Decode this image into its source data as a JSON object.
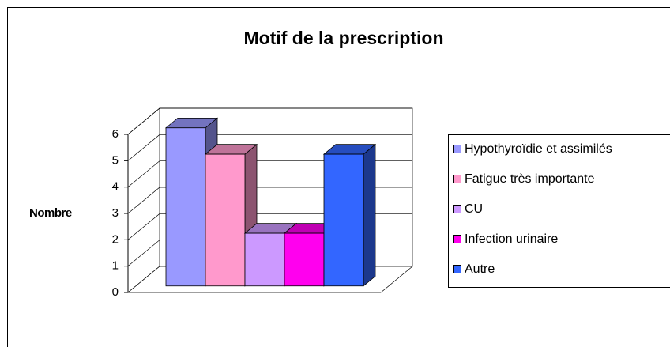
{
  "chart_data": {
    "type": "bar",
    "title": "Motif de la prescription",
    "y_label": "Nombre",
    "categories": [
      "Hypothyroïdie et assimilés",
      "Fatigue très importante",
      "CU",
      "Infection urinaire",
      "Autre"
    ],
    "values": [
      6,
      5,
      2,
      2,
      5
    ],
    "colors": [
      "#9999ff",
      "#ff99cc",
      "#cc99ff",
      "#ff00ee",
      "#3366ff"
    ],
    "ylim": [
      0,
      6
    ],
    "yticks": [
      0,
      1,
      2,
      3,
      4,
      5,
      6
    ],
    "grid": true,
    "legend": "right"
  }
}
